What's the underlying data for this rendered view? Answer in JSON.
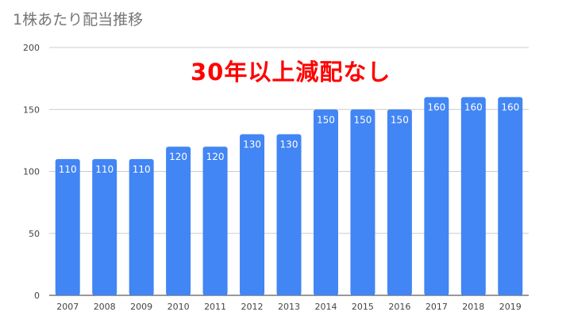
{
  "chart_data": {
    "type": "bar",
    "title": "1株あたり配当推移",
    "annotation": "30年以上減配なし",
    "categories": [
      "2007",
      "2008",
      "2009",
      "2010",
      "2011",
      "2012",
      "2013",
      "2014",
      "2015",
      "2016",
      "2017",
      "2018",
      "2019"
    ],
    "values": [
      110,
      110,
      110,
      120,
      120,
      130,
      130,
      150,
      150,
      150,
      160,
      160,
      160
    ],
    "ylim": [
      0,
      200
    ],
    "yticks": [
      0,
      50,
      100,
      150,
      200
    ],
    "grid": true,
    "bar_color": "#4285f4",
    "label_color": "#ffffff",
    "annotation_color": "#ff0000",
    "xlabel": "",
    "ylabel": ""
  }
}
